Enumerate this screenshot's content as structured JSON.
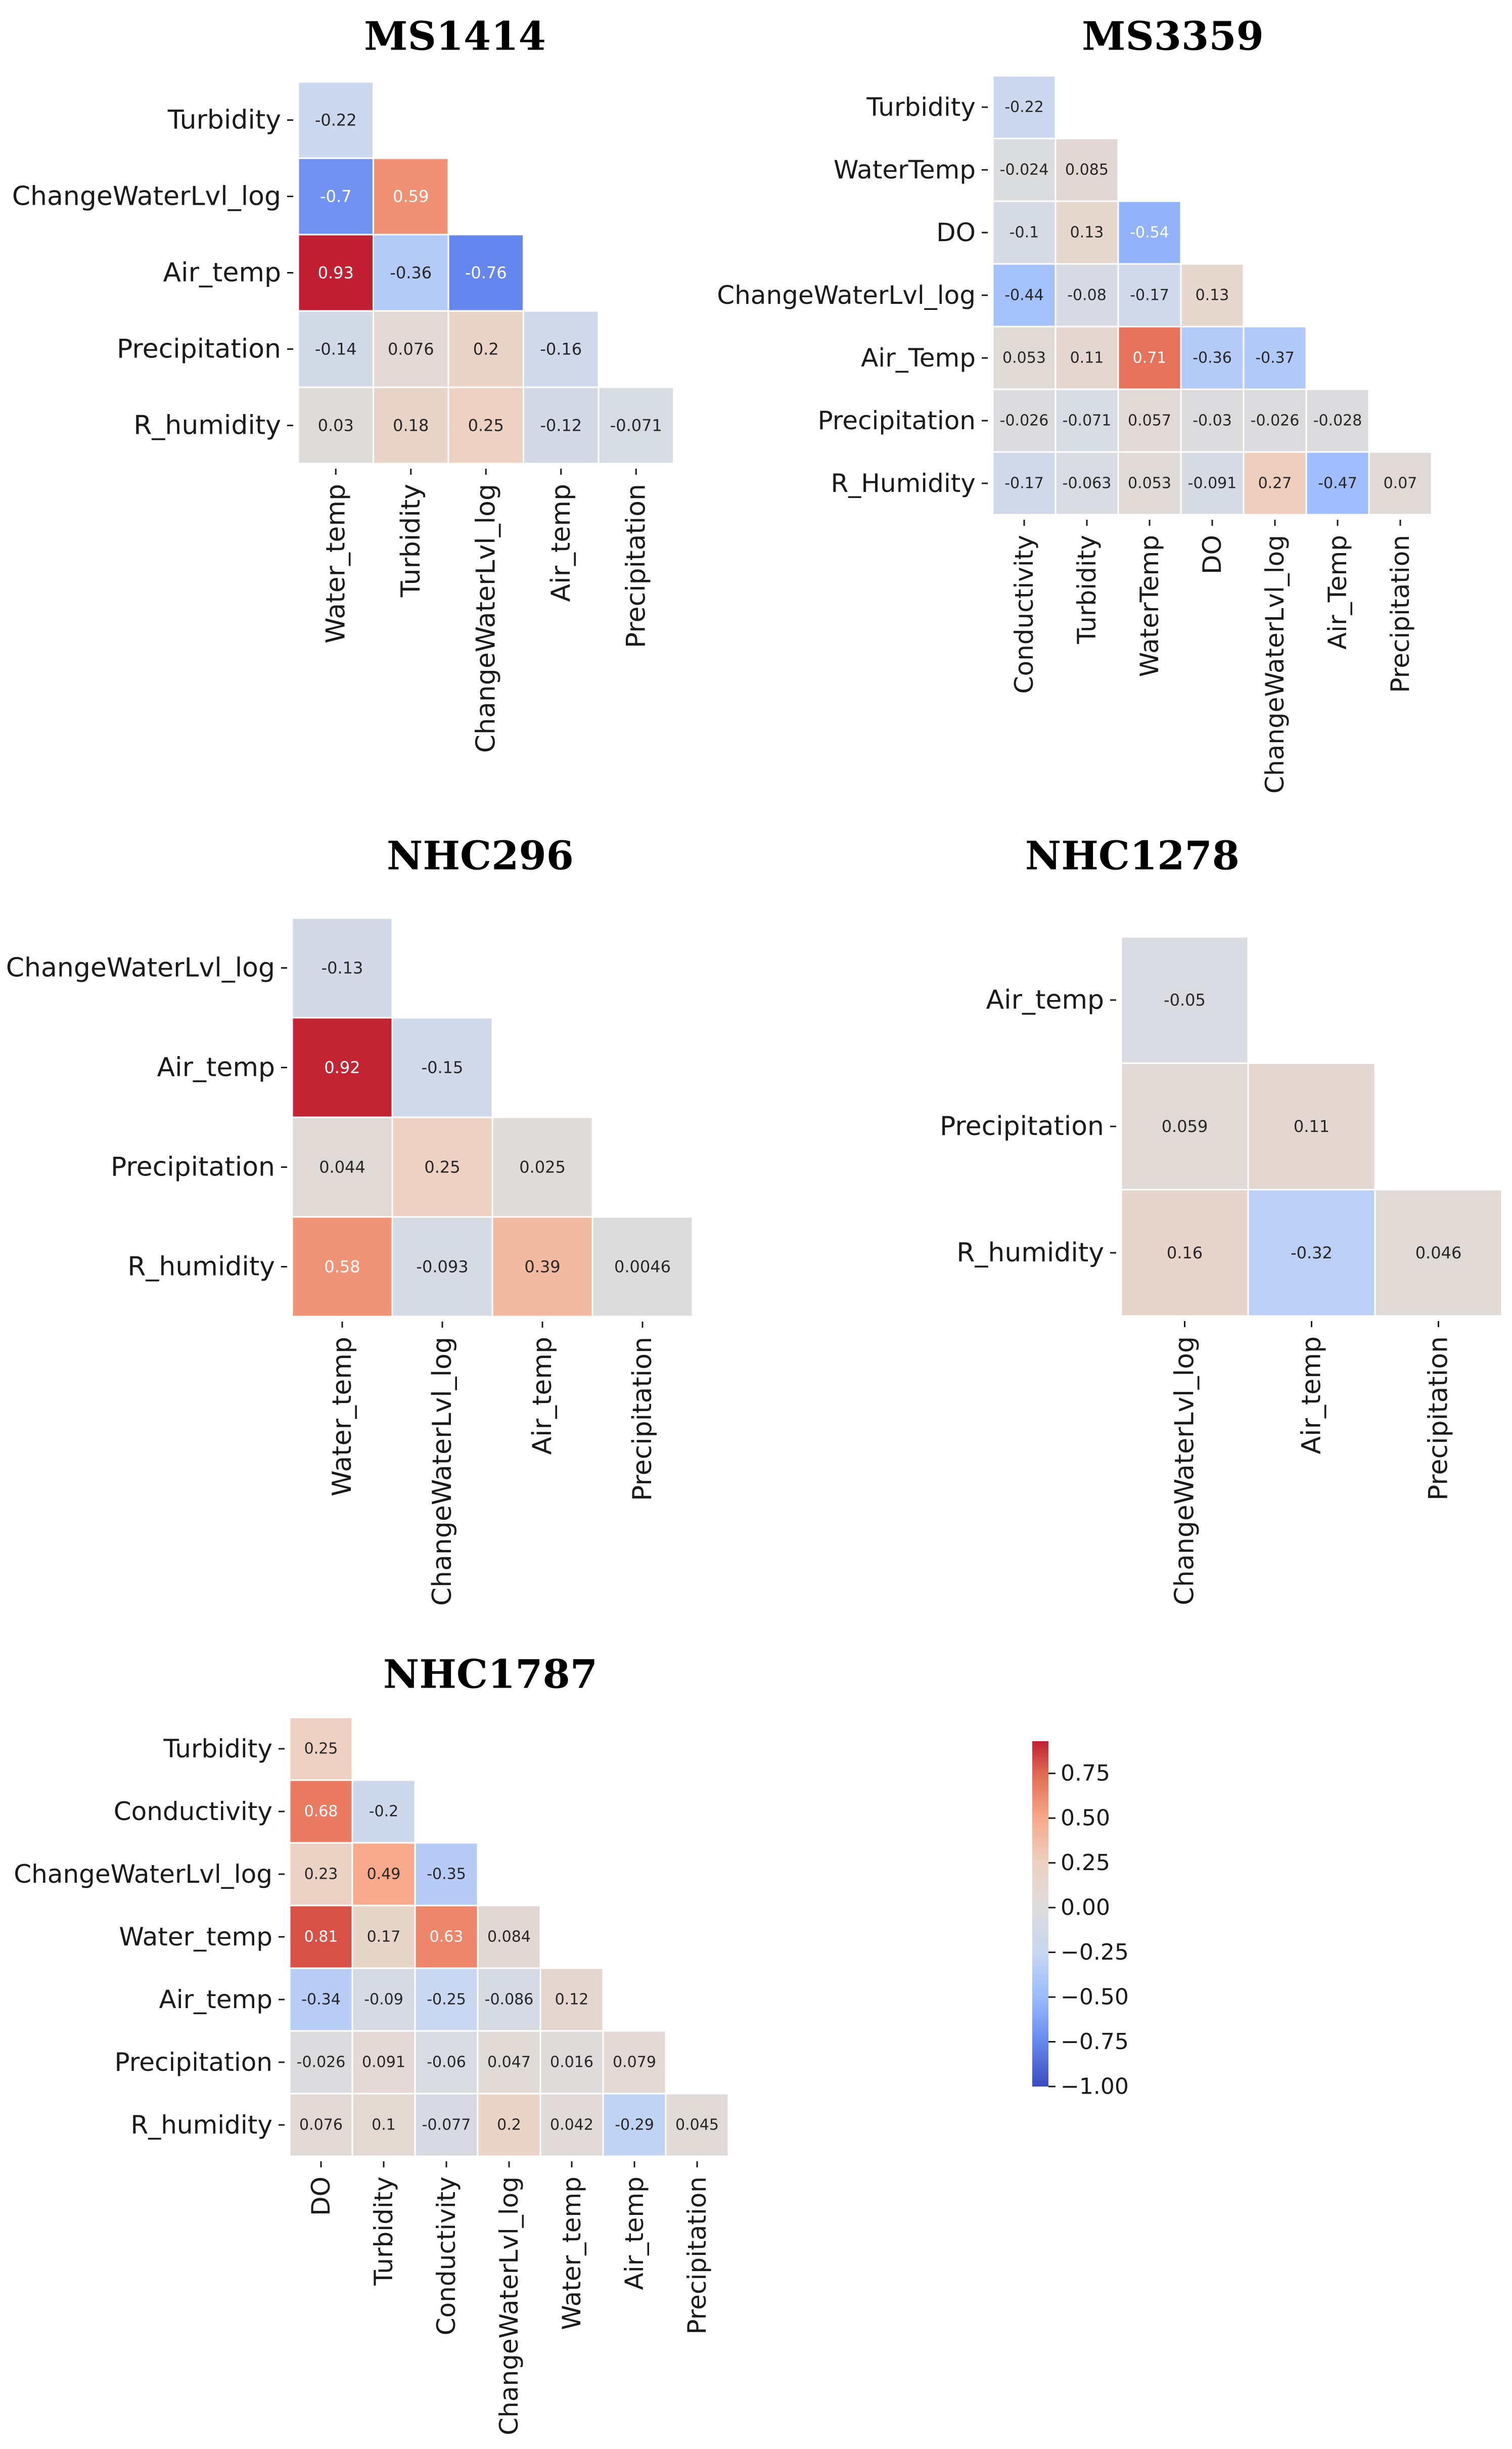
{
  "chart_data": [
    {
      "type": "heatmap",
      "title": "MS1414",
      "rows": [
        "Turbidity",
        "ChangeWaterLvl_log",
        "Air_temp",
        "Precipitation",
        "R_humidity"
      ],
      "cols": [
        "Water_temp",
        "Turbidity",
        "ChangeWaterLvl_log",
        "Air_temp",
        "Precipitation"
      ],
      "values": [
        [
          "-0.22"
        ],
        [
          "-0.7",
          "0.59"
        ],
        [
          "0.93",
          "-0.36",
          "-0.76"
        ],
        [
          "-0.14",
          "0.076",
          "0.2",
          "-0.16"
        ],
        [
          "0.03",
          "0.18",
          "0.25",
          "-0.12",
          "-0.071"
        ]
      ]
    },
    {
      "type": "heatmap",
      "title": "MS3359",
      "rows": [
        "Turbidity",
        "WaterTemp",
        "DO",
        "ChangeWaterLvl_log",
        "Air_Temp",
        "Precipitation",
        "R_Humidity"
      ],
      "cols": [
        "Conductivity",
        "Turbidity",
        "WaterTemp",
        "DO",
        "ChangeWaterLvl_log",
        "Air_Temp",
        "Precipitation"
      ],
      "values": [
        [
          "-0.22"
        ],
        [
          "-0.024",
          "0.085"
        ],
        [
          "-0.1",
          "0.13",
          "-0.54"
        ],
        [
          "-0.44",
          "-0.08",
          "-0.17",
          "0.13"
        ],
        [
          "0.053",
          "0.11",
          "0.71",
          "-0.36",
          "-0.37"
        ],
        [
          "-0.026",
          "-0.071",
          "0.057",
          "-0.03",
          "-0.026",
          "-0.028"
        ],
        [
          "-0.17",
          "-0.063",
          "0.053",
          "-0.091",
          "0.27",
          "-0.47",
          "0.07"
        ]
      ]
    },
    {
      "type": "heatmap",
      "title": "NHC296",
      "rows": [
        "ChangeWaterLvl_log",
        "Air_temp",
        "Precipitation",
        "R_humidity"
      ],
      "cols": [
        "Water_temp",
        "ChangeWaterLvl_log",
        "Air_temp",
        "Precipitation"
      ],
      "values": [
        [
          "-0.13"
        ],
        [
          "0.92",
          "-0.15"
        ],
        [
          "0.044",
          "0.25",
          "0.025"
        ],
        [
          "0.58",
          "-0.093",
          "0.39",
          "0.0046"
        ]
      ]
    },
    {
      "type": "heatmap",
      "title": "NHC1278",
      "rows": [
        "Air_temp",
        "Precipitation",
        "R_humidity"
      ],
      "cols": [
        "ChangeWaterLvl_log",
        "Air_temp",
        "Precipitation"
      ],
      "values": [
        [
          "-0.05"
        ],
        [
          "0.059",
          "0.11"
        ],
        [
          "0.16",
          "-0.32",
          "0.046"
        ]
      ]
    },
    {
      "type": "heatmap",
      "title": "NHC1787",
      "rows": [
        "Turbidity",
        "Conductivity",
        "ChangeWaterLvl_log",
        "Water_temp",
        "Air_temp",
        "Precipitation",
        "R_humidity"
      ],
      "cols": [
        "DO",
        "Turbidity",
        "Conductivity",
        "ChangeWaterLvl_log",
        "Water_temp",
        "Air_temp",
        "Precipitation"
      ],
      "values": [
        [
          "0.25"
        ],
        [
          "0.68",
          "-0.2"
        ],
        [
          "0.23",
          "0.49",
          "-0.35"
        ],
        [
          "0.81",
          "0.17",
          "0.63",
          "0.084"
        ],
        [
          "-0.34",
          "-0.09",
          "-0.25",
          "-0.086",
          "0.12"
        ],
        [
          "-0.026",
          "0.091",
          "-0.06",
          "0.047",
          "0.016",
          "0.079"
        ],
        [
          "0.076",
          "0.1",
          "-0.077",
          "0.2",
          "0.042",
          "-0.29",
          "0.045"
        ]
      ]
    }
  ],
  "colorbar": {
    "min": -1.0,
    "max": 0.93,
    "ticks": [
      "0.75",
      "0.50",
      "0.25",
      "0.00",
      "−0.25",
      "−0.50",
      "−0.75",
      "−1.00"
    ],
    "colormap": "coolwarm",
    "colors": [
      "#3b4cc0",
      "#6788ee",
      "#9abbff",
      "#c9d7f0",
      "#dddcdc",
      "#edd1c2",
      "#f7a889",
      "#e26952",
      "#b40426"
    ]
  }
}
